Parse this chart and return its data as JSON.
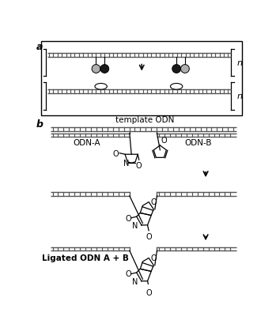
{
  "bg_color": "#ffffff",
  "line_color": "#000000",
  "fig_width": 3.49,
  "fig_height": 4.06,
  "dpi": 100,
  "panel_a_label": "a",
  "panel_b_label": "b",
  "template_odn_label": "template ODN",
  "odn_a_label": "ODN-A",
  "odn_b_label": "ODN-B",
  "ligated_label": "Ligated ODN A + B",
  "n_label": "n",
  "strand_color": "#555555",
  "gray_sphere": "#b0b0b0",
  "black_sphere": "#1a1a1a"
}
